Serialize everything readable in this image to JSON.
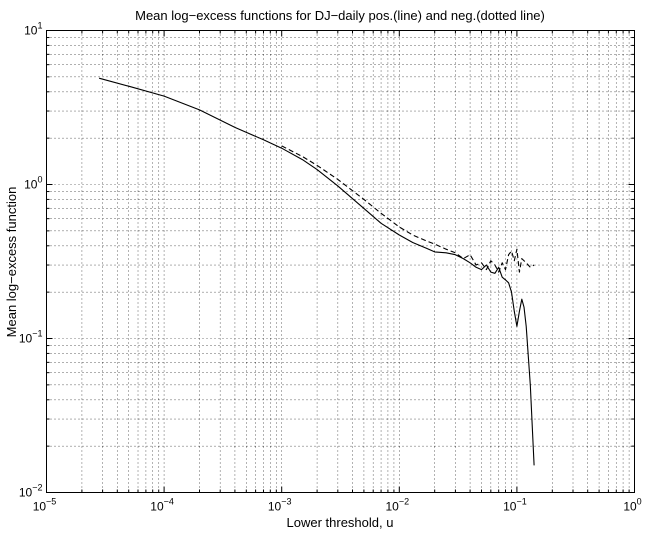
{
  "chart_data": {
    "type": "line",
    "title": "Mean log−excess functions for DJ−daily pos.(line) and neg.(dotted line)",
    "xlabel": "Lower threshold, u",
    "ylabel": "Mean log−excess function",
    "xscale": "log",
    "yscale": "log",
    "xlim": [
      1e-05,
      1
    ],
    "ylim": [
      0.01,
      10
    ],
    "grid": "on",
    "x_tick_labels": [
      {
        "base": "10",
        "exp": "−5"
      },
      {
        "base": "10",
        "exp": "−4"
      },
      {
        "base": "10",
        "exp": "−3"
      },
      {
        "base": "10",
        "exp": "−2"
      },
      {
        "base": "10",
        "exp": "−1"
      },
      {
        "base": "10",
        "exp": "0"
      }
    ],
    "y_tick_labels": [
      {
        "base": "10",
        "exp": "−2"
      },
      {
        "base": "10",
        "exp": "−1"
      },
      {
        "base": "10",
        "exp": "0"
      },
      {
        "base": "10",
        "exp": "1"
      }
    ],
    "series": [
      {
        "style": "solid",
        "color": "#000000",
        "x": [
          2.8e-05,
          5e-05,
          0.0001,
          0.0002,
          0.0004,
          0.0007,
          0.001,
          0.0015,
          0.002,
          0.003,
          0.005,
          0.007,
          0.01,
          0.013,
          0.017,
          0.02,
          0.025,
          0.03,
          0.035,
          0.04,
          0.045,
          0.05,
          0.055,
          0.06,
          0.065,
          0.07,
          0.075,
          0.08,
          0.085,
          0.09,
          0.095,
          0.1,
          0.105,
          0.11,
          0.115,
          0.12,
          0.13,
          0.14
        ],
        "y": [
          4.9,
          4.35,
          3.75,
          3.05,
          2.35,
          1.95,
          1.72,
          1.45,
          1.25,
          0.98,
          0.7,
          0.56,
          0.47,
          0.42,
          0.385,
          0.365,
          0.36,
          0.35,
          0.33,
          0.31,
          0.29,
          0.28,
          0.3,
          0.27,
          0.265,
          0.29,
          0.25,
          0.24,
          0.23,
          0.2,
          0.15,
          0.12,
          0.15,
          0.18,
          0.16,
          0.12,
          0.05,
          0.015
        ]
      },
      {
        "style": "dashed",
        "color": "#000000",
        "x": [
          0.001,
          0.0015,
          0.002,
          0.003,
          0.005,
          0.007,
          0.01,
          0.013,
          0.017,
          0.02,
          0.025,
          0.03,
          0.035,
          0.04,
          0.045,
          0.05,
          0.055,
          0.06,
          0.065,
          0.07,
          0.075,
          0.08,
          0.085,
          0.09,
          0.095,
          0.1,
          0.105,
          0.11,
          0.12,
          0.13,
          0.14
        ],
        "y": [
          1.78,
          1.52,
          1.33,
          1.08,
          0.8,
          0.65,
          0.53,
          0.47,
          0.43,
          0.41,
          0.38,
          0.36,
          0.33,
          0.35,
          0.3,
          0.31,
          0.28,
          0.32,
          0.3,
          0.27,
          0.31,
          0.28,
          0.35,
          0.37,
          0.32,
          0.38,
          0.27,
          0.33,
          0.31,
          0.29,
          0.3
        ]
      }
    ]
  }
}
